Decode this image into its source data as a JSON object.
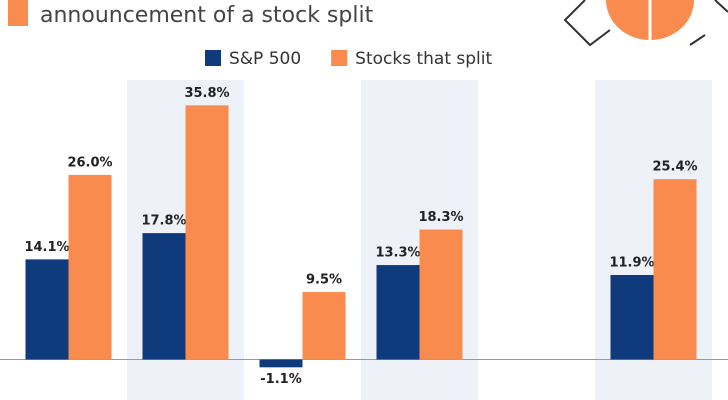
{
  "chart_data": {
    "type": "bar",
    "title": "announcement of a stock split",
    "categories": [
      null,
      null,
      null,
      null,
      null,
      null
    ],
    "series": [
      {
        "name": "S&P 500",
        "color": "#0f3b7d",
        "values": [
          14.1,
          17.8,
          -1.1,
          13.3,
          null,
          11.9
        ],
        "value_labels": [
          "14.1%",
          "17.8%",
          "-1.1%",
          "13.3%",
          null,
          "11.9%"
        ]
      },
      {
        "name": "Stocks that split",
        "color": "#fa8b4e",
        "values": [
          26.0,
          35.8,
          9.5,
          18.3,
          null,
          25.4
        ],
        "value_labels": [
          "26.0%",
          "35.8%",
          "9.5%",
          "18.3%",
          null,
          "25.4%"
        ]
      }
    ],
    "ylim": [
      -5,
      45
    ]
  }
}
